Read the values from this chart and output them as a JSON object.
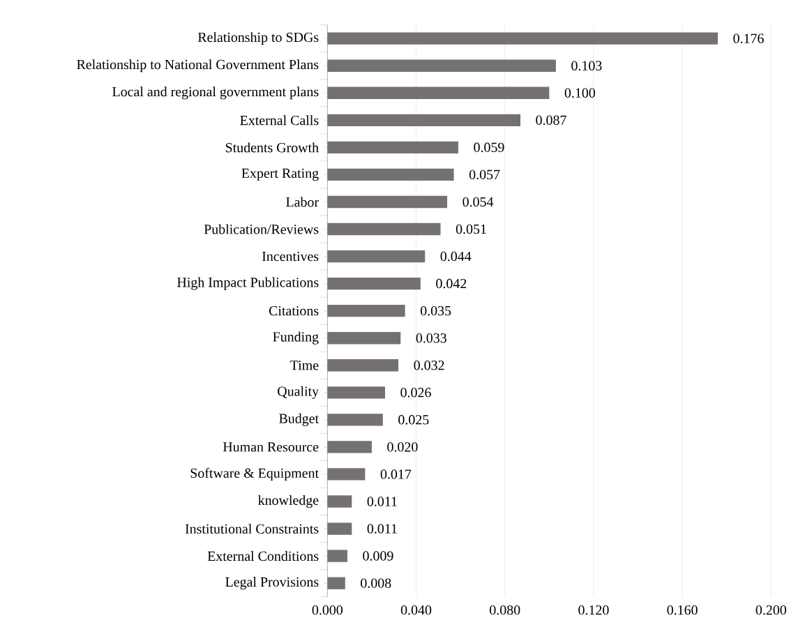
{
  "chart_data": {
    "type": "bar",
    "orientation": "horizontal",
    "color": "#767171",
    "grid": "x",
    "categories": [
      "Relationship to SDGs",
      "Relationship to National Government Plans",
      "Local and regional government plans",
      "External Calls",
      "Students Growth",
      "Expert Rating",
      "Labor",
      "Publication/Reviews",
      "Incentives",
      "High Impact Publications",
      "Citations",
      "Funding",
      "Time",
      "Quality",
      "Budget",
      "Human Resource",
      "Software & Equipment",
      "knowledge",
      "Institutional Constraints",
      "External Conditions",
      "Legal Provisions"
    ],
    "values": [
      0.176,
      0.103,
      0.1,
      0.087,
      0.059,
      0.057,
      0.054,
      0.051,
      0.044,
      0.042,
      0.035,
      0.033,
      0.032,
      0.026,
      0.025,
      0.02,
      0.017,
      0.011,
      0.011,
      0.009,
      0.008
    ],
    "value_labels": [
      "0.176",
      "0.103",
      "0.100",
      "0.087",
      "0.059",
      "0.057",
      "0.054",
      "0.051",
      "0.044",
      "0.042",
      "0.035",
      "0.033",
      "0.032",
      "0.026",
      "0.025",
      "0.020",
      "0.017",
      "0.011",
      "0.011",
      "0.009",
      "0.008"
    ],
    "xlim": [
      0,
      0.2
    ],
    "xticks": [
      {
        "value": 0,
        "label": "0.000"
      },
      {
        "value": 0.04,
        "label": "0.040"
      },
      {
        "value": 0.08,
        "label": "0.080"
      },
      {
        "value": 0.12,
        "label": "0.120"
      },
      {
        "value": 0.16,
        "label": "0.160"
      },
      {
        "value": 0.2,
        "label": "0.200"
      }
    ]
  }
}
